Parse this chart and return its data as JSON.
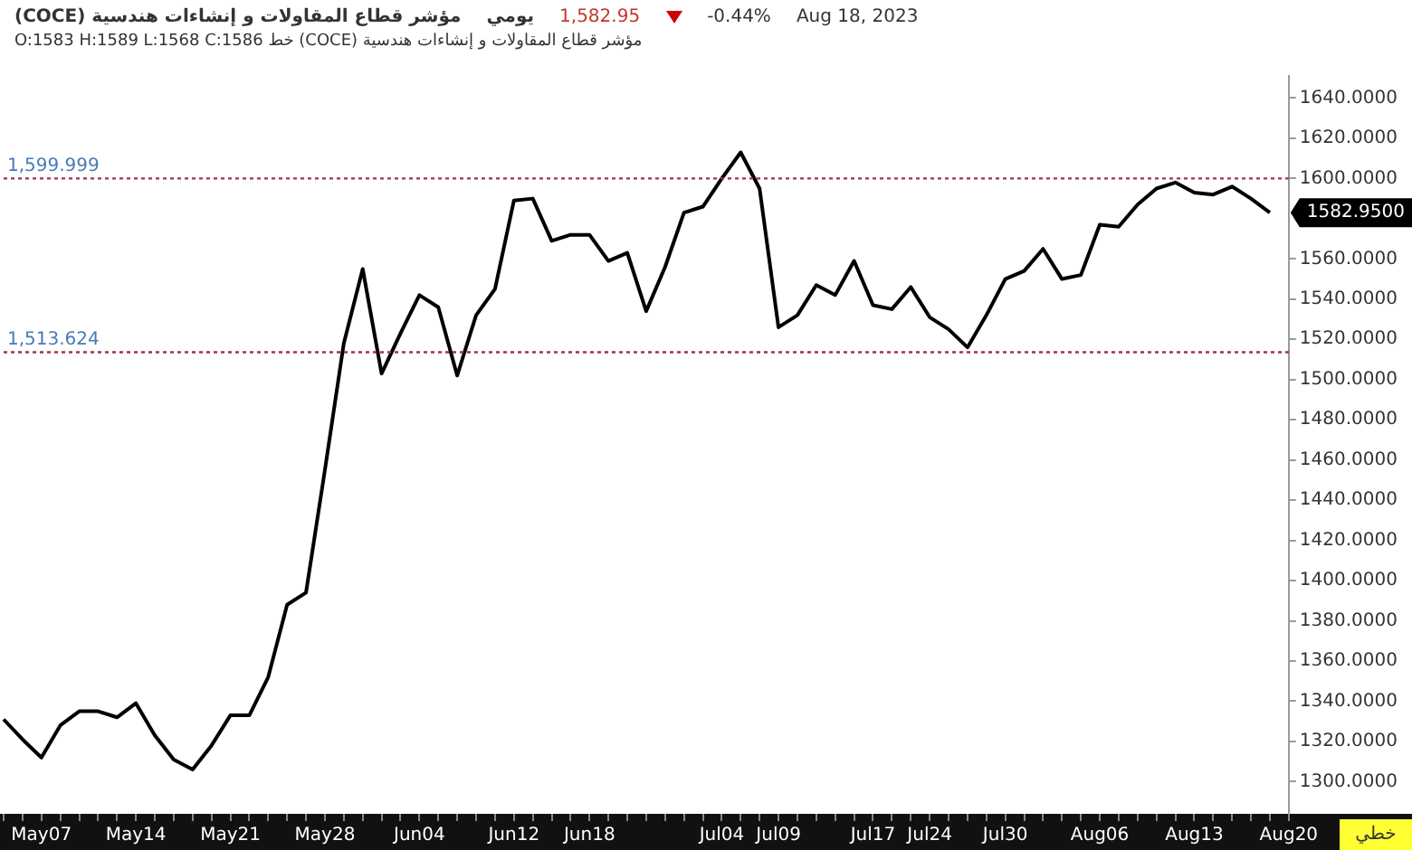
{
  "chart_data": {
    "type": "line",
    "title": "مؤشر قطاع المقاولات و إنشاءات هندسية (COCE)",
    "subtitle": "مؤشر قطاع المقاولات و إنشاءات هندسية (COCE) خط O:1583 H:1589 L:1568 C:1586",
    "annotations": [
      "يومي",
      "1,582.95",
      "-0.44%",
      "Aug 18, 2023",
      "خطي",
      "1582.9500"
    ],
    "categories": [
      null,
      null,
      "May07",
      null,
      null,
      null,
      null,
      "May14",
      null,
      null,
      null,
      null,
      "May21",
      null,
      null,
      null,
      null,
      "May28",
      null,
      null,
      null,
      null,
      "Jun04",
      null,
      null,
      null,
      null,
      "Jun12",
      null,
      null,
      null,
      "Jun18",
      null,
      null,
      null,
      null,
      null,
      null,
      "Jul04",
      null,
      null,
      "Jul09",
      null,
      null,
      null,
      null,
      "Jul17",
      null,
      null,
      "Jul24",
      null,
      null,
      null,
      "Jul30",
      null,
      null,
      null,
      null,
      "Aug06",
      null,
      null,
      null,
      null,
      "Aug13",
      null,
      null,
      null,
      null,
      "Aug20"
    ],
    "series": [
      {
        "color": "#000000",
        "values": [
          1331,
          1321,
          1312,
          1328,
          1335,
          1335,
          1332,
          1339,
          1323,
          1311,
          1306,
          1318,
          1333,
          1333,
          1352,
          1388,
          1394,
          1455,
          1518,
          1555,
          1503,
          1523,
          1542,
          1536,
          1502,
          1532,
          1545,
          1589,
          1590,
          1569,
          1572,
          1572,
          1559,
          1563,
          1534,
          1556,
          1583,
          1586,
          1600,
          1613,
          1595,
          1526,
          1532,
          1547,
          1542,
          1559,
          1537,
          1535,
          1546,
          1531,
          1525,
          1516,
          1532,
          1550,
          1554,
          1565,
          1550,
          1552,
          1577,
          1576,
          1587,
          1595,
          1598,
          1593,
          1592,
          1596,
          1590,
          1583,
          null
        ]
      }
    ],
    "ylim": [
      1284,
      1651
    ],
    "yticks": [
      {
        "value": 1300,
        "label": "1300.0000"
      },
      {
        "value": 1320,
        "label": "1320.0000"
      },
      {
        "value": 1340,
        "label": "1340.0000"
      },
      {
        "value": 1360,
        "label": "1360.0000"
      },
      {
        "value": 1380,
        "label": "1380.0000"
      },
      {
        "value": 1400,
        "label": "1400.0000"
      },
      {
        "value": 1420,
        "label": "1420.0000"
      },
      {
        "value": 1440,
        "label": "1440.0000"
      },
      {
        "value": 1460,
        "label": "1460.0000"
      },
      {
        "value": 1480,
        "label": "1480.0000"
      },
      {
        "value": 1500,
        "label": "1500.0000"
      },
      {
        "value": 1520,
        "label": "1520.0000"
      },
      {
        "value": 1540,
        "label": "1540.0000"
      },
      {
        "value": 1560,
        "label": "1560.0000"
      },
      {
        "value": 1600,
        "label": "1600.0000"
      },
      {
        "value": 1620,
        "label": "1620.0000"
      },
      {
        "value": 1640,
        "label": "1640.0000"
      }
    ],
    "ref_lines": [
      {
        "axis": "y",
        "value": 1599.999,
        "label": "1,599.999",
        "color": "#a0344c",
        "line_style": "dotted"
      },
      {
        "axis": "y",
        "value": 1513.624,
        "label": "1,513.624",
        "color": "#a0344c",
        "line_style": "dotted"
      }
    ],
    "marker": "none",
    "line_style": "solid",
    "grid": false,
    "legend": false
  }
}
